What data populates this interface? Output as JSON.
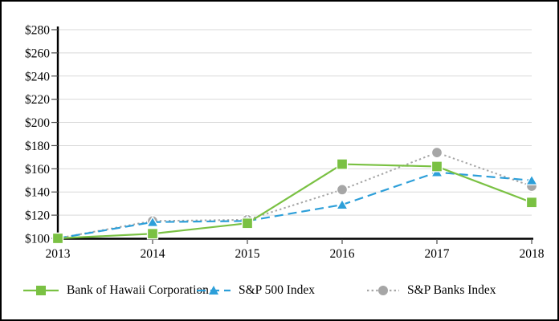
{
  "frame": {
    "background": "#FFFFFF",
    "border_color": "#000000"
  },
  "chart_data": {
    "type": "line",
    "title": "",
    "xlabel": "",
    "ylabel": "",
    "x_labels": [
      "2013",
      "2014",
      "2015",
      "2016",
      "2017",
      "2018"
    ],
    "y_ticks": [
      "$100",
      "$120",
      "$140",
      "$160",
      "$180",
      "$200",
      "$220",
      "$240",
      "$260",
      "$280"
    ],
    "ylim": [
      100,
      280
    ],
    "y_tick_step": 20,
    "grid": true,
    "legend_position": "bottom",
    "series": [
      {
        "name": "Bank of Hawaii Corporation",
        "marker": "square",
        "line_style": "solid",
        "color": "#7AC143",
        "values": [
          100,
          104,
          113,
          164,
          162,
          131
        ]
      },
      {
        "name": "S&P 500 Index",
        "marker": "triangle",
        "line_style": "dashed",
        "color": "#2D9FD9",
        "values": [
          100,
          114,
          115,
          129,
          157,
          150
        ]
      },
      {
        "name": "S&P Banks Index",
        "marker": "circle",
        "line_style": "dotted",
        "color": "#A6A6A6",
        "values": [
          100,
          115,
          116,
          142,
          174,
          145
        ]
      }
    ],
    "colors": {
      "gridline": "#D9D9D9",
      "axis": "#000000",
      "tick": "#4D4D4D",
      "text": "#000000"
    }
  }
}
